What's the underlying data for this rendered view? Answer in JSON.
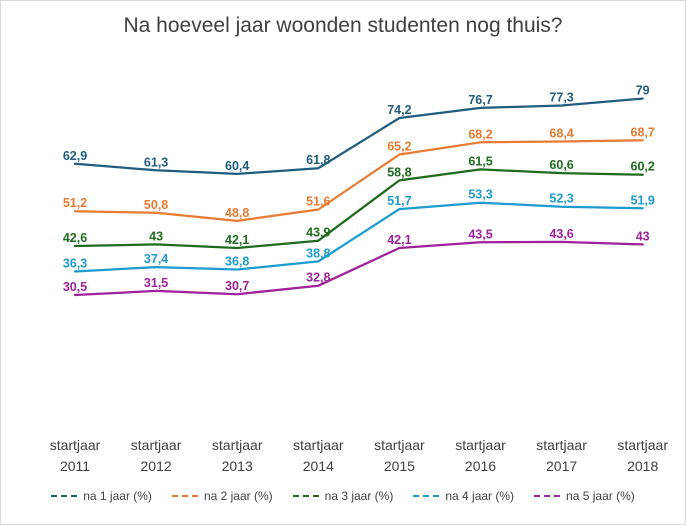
{
  "chart_data": {
    "type": "line",
    "title": "Na hoeveel jaar woonden studenten nog thuis?",
    "xlabel": "",
    "ylabel": "",
    "ylim": [
      0,
      100
    ],
    "grid": false,
    "legend_position": "bottom",
    "categories": [
      [
        "startjaar",
        "2011"
      ],
      [
        "startjaar",
        "2012"
      ],
      [
        "startjaar",
        "2013"
      ],
      [
        "startjaar",
        "2014"
      ],
      [
        "startjaar",
        "2015"
      ],
      [
        "startjaar",
        "2016"
      ],
      [
        "startjaar",
        "2017"
      ],
      [
        "startjaar",
        "2018"
      ]
    ],
    "series": [
      {
        "name": "na 1 jaar (%)",
        "color": "#1f5c7e",
        "values": [
          62.9,
          61.3,
          60.4,
          61.8,
          74.2,
          76.7,
          77.3,
          79
        ],
        "labels": [
          "62,9",
          "61,3",
          "60,4",
          "61,8",
          "74,2",
          "76,7",
          "77,3",
          "79"
        ]
      },
      {
        "name": "na 2 jaar (%)",
        "color": "#e97a32",
        "values": [
          51.2,
          50.8,
          48.8,
          51.6,
          65.2,
          68.2,
          68.4,
          68.7
        ],
        "labels": [
          "51,2",
          "50,8",
          "48,8",
          "51,6",
          "65,2",
          "68,2",
          "68,4",
          "68,7"
        ]
      },
      {
        "name": "na 3 jaar (%)",
        "color": "#1e6b1e",
        "values": [
          42.6,
          43,
          42.1,
          43.9,
          58.8,
          61.5,
          60.6,
          60.2
        ],
        "labels": [
          "42,6",
          "43",
          "42,1",
          "43,9",
          "58,8",
          "61,5",
          "60,6",
          "60,2"
        ]
      },
      {
        "name": "na 4 jaar (%)",
        "color": "#1c9bd0",
        "values": [
          36.3,
          37.4,
          36.8,
          38.8,
          51.7,
          53.3,
          52.3,
          51.9
        ],
        "labels": [
          "36,3",
          "37,4",
          "36,8",
          "38,8",
          "51,7",
          "53,3",
          "52,3",
          "51,9"
        ]
      },
      {
        "name": "na 5 jaar (%)",
        "color": "#a0219b",
        "values": [
          30.5,
          31.5,
          30.7,
          32.8,
          42.1,
          43.5,
          43.6,
          43
        ],
        "labels": [
          "30,5",
          "31,5",
          "30,7",
          "32,8",
          "42,1",
          "43,5",
          "43,6",
          "43"
        ]
      }
    ]
  }
}
